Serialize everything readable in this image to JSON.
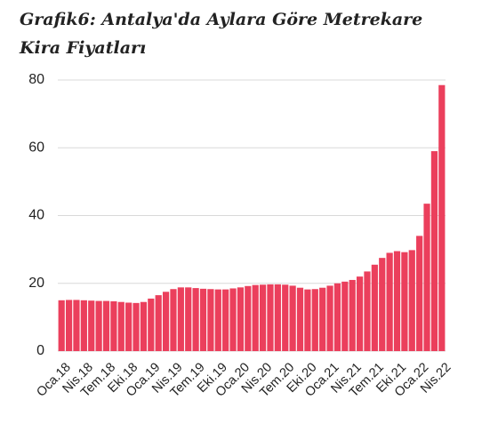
{
  "chart_data": {
    "type": "bar",
    "title": "Grafik6: Antalya'da Aylara Göre Metrekare Kira Fiyatları",
    "categories": [
      "Oca.18",
      null,
      null,
      "Nis.18",
      null,
      null,
      "Tem.18",
      null,
      null,
      "Eki.18",
      null,
      null,
      "Oca.19",
      null,
      null,
      "Nis.19",
      null,
      null,
      "Tem.19",
      null,
      null,
      "Eki.19",
      null,
      null,
      "Oca.20",
      null,
      null,
      "Nis.20",
      null,
      null,
      "Tem.20",
      null,
      null,
      "Eki.20",
      null,
      null,
      "Oca.21",
      null,
      null,
      "Nis.21",
      null,
      null,
      "Tem.21",
      null,
      null,
      "Eki.21",
      null,
      null,
      "Oca.22",
      null,
      null,
      "Nis.22"
    ],
    "values": [
      15,
      15.1,
      15.1,
      15,
      14.9,
      14.8,
      14.8,
      14.7,
      14.5,
      14.3,
      14.2,
      14.5,
      15.5,
      16.5,
      17.5,
      18.3,
      18.8,
      18.8,
      18.6,
      18.4,
      18.3,
      18.2,
      18.2,
      18.5,
      18.8,
      19.2,
      19.5,
      19.6,
      19.7,
      19.7,
      19.6,
      19.3,
      18.7,
      18.2,
      18.3,
      18.7,
      19.3,
      20,
      20.5,
      21,
      22,
      23.5,
      25.5,
      27.5,
      29,
      29.5,
      29.2,
      29.8,
      34,
      43.5,
      59,
      78.5
    ],
    "color": "#eb3f5c",
    "ylim": [
      0,
      80
    ],
    "yticks": [
      0,
      20,
      40,
      60,
      80
    ],
    "grid": true
  }
}
